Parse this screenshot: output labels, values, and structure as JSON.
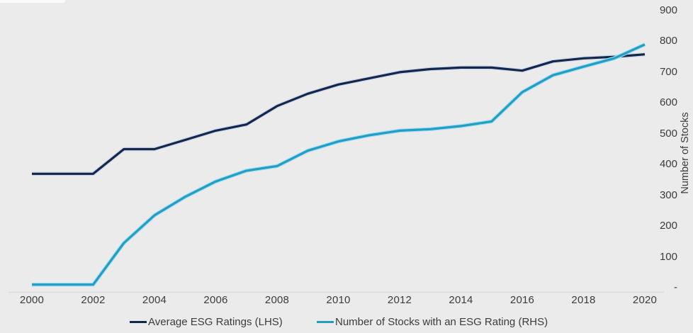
{
  "colors": {
    "background": "#ebebeb",
    "axis_line": "#d9d9d9",
    "text": "#3c3c3c",
    "navy": "#13264e",
    "cyan": "#1f9fc5"
  },
  "chart_data": {
    "type": "line",
    "title": "",
    "x": [
      2000,
      2001,
      2002,
      2003,
      2004,
      2005,
      2006,
      2007,
      2008,
      2009,
      2010,
      2011,
      2012,
      2013,
      2014,
      2015,
      2016,
      2017,
      2018,
      2019,
      2020
    ],
    "x_tick_labels": [
      "2000",
      "2002",
      "2004",
      "2006",
      "2008",
      "2010",
      "2012",
      "2014",
      "2016",
      "2018",
      "2020"
    ],
    "series": [
      {
        "name": "Average ESG Ratings (LHS)",
        "axis": "left",
        "color": "#13264e",
        "values_rhs_scale": [
          370,
          370,
          370,
          450,
          450,
          480,
          510,
          530,
          590,
          630,
          660,
          680,
          700,
          710,
          715,
          715,
          705,
          735,
          745,
          750,
          758
        ]
      },
      {
        "name": "Number of Stocks with an ESG Rating (RHS)",
        "axis": "right",
        "color": "#1f9fc5",
        "values_rhs_scale": [
          10,
          10,
          10,
          145,
          235,
          295,
          345,
          380,
          395,
          445,
          475,
          495,
          510,
          515,
          525,
          540,
          635,
          690,
          718,
          745,
          790
        ]
      }
    ],
    "right_axis": {
      "label": "Number of Stocks",
      "min": 0,
      "max": 900,
      "tick_labels": [
        "900",
        "800",
        "700",
        "600",
        "500",
        "400",
        "300",
        "200",
        "100",
        "-"
      ],
      "tick_values": [
        900,
        800,
        700,
        600,
        500,
        400,
        300,
        200,
        100,
        0
      ]
    },
    "left_axis": {
      "labels_shown": false
    },
    "grid": false,
    "legend_position": "bottom"
  },
  "legend": {
    "items": [
      {
        "label": "Average ESG Ratings (LHS)",
        "color": "#13264e"
      },
      {
        "label": "Number of Stocks with an ESG Rating (RHS)",
        "color": "#1f9fc5"
      }
    ]
  }
}
